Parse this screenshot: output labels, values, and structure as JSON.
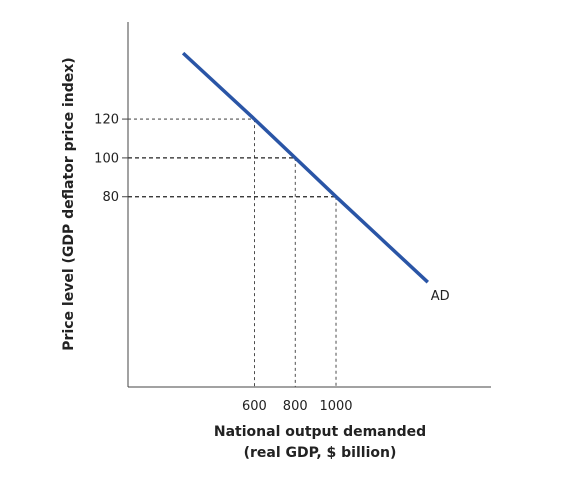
{
  "chart_data": {
    "type": "line",
    "title": "",
    "xlabel_line1": "National output demanded",
    "xlabel_line2": "(real GDP, $ billion)",
    "ylabel": "Price level (GDP deflator price index)",
    "x_ticks": [
      600,
      800,
      1000
    ],
    "x_tick_labels": [
      "600",
      "800",
      "1000"
    ],
    "y_ticks": [
      80,
      100,
      120
    ],
    "y_tick_labels": [
      "80",
      "100",
      "120"
    ],
    "xlim": [
      -20,
      1760
    ],
    "ylim": [
      -18,
      170
    ],
    "series": [
      {
        "name": "AD",
        "color": "#2a55a6",
        "points": [
          [
            250,
            154
          ],
          [
            600,
            120
          ],
          [
            800,
            100
          ],
          [
            1000,
            80
          ],
          [
            1450,
            36
          ]
        ]
      }
    ],
    "reference_points": [
      {
        "x": 600,
        "y": 120
      },
      {
        "x": 800,
        "y": 100
      },
      {
        "x": 1000,
        "y": 80
      }
    ],
    "grid": false,
    "legend": "none"
  }
}
